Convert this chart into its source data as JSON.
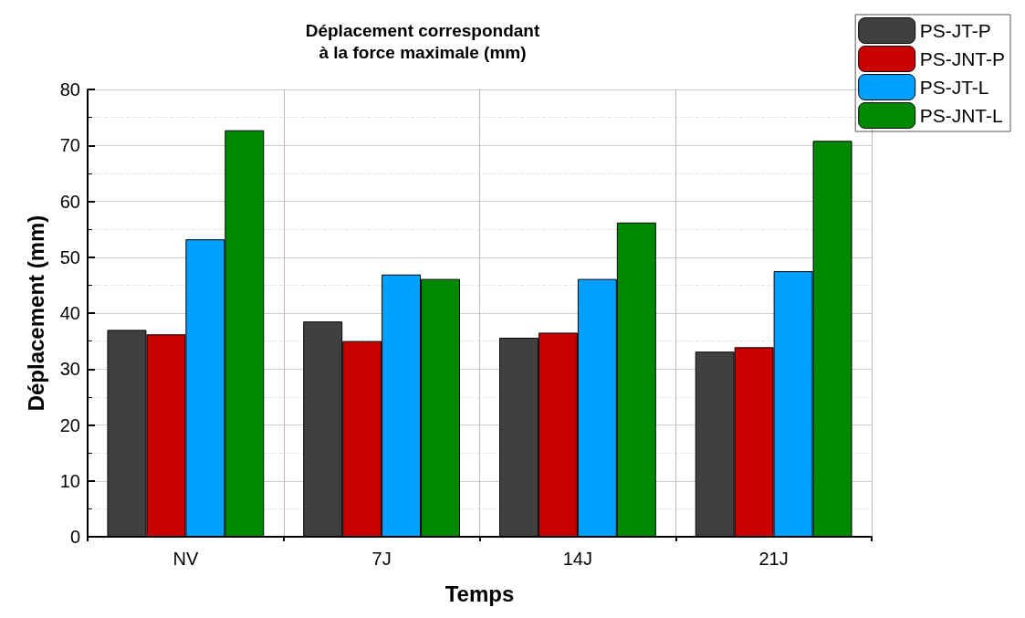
{
  "chart_data": {
    "type": "bar",
    "title": "Déplacement correspondant\nà la force maximale (mm)",
    "xlabel": "Temps",
    "ylabel": "Déplacement (mm)",
    "categories": [
      "NV",
      "7J",
      "14J",
      "21J"
    ],
    "series": [
      {
        "name": "PS-JT-P",
        "color": "#404040",
        "values": [
          37,
          38.5,
          35.6,
          33.1
        ]
      },
      {
        "name": "PS-JNT-P",
        "color": "#c80000",
        "values": [
          36.2,
          35,
          36.5,
          33.9
        ]
      },
      {
        "name": "PS-JT-L",
        "color": "#00a0ff",
        "values": [
          53.2,
          46.9,
          46.1,
          47.5
        ]
      },
      {
        "name": "PS-JNT-L",
        "color": "#008800",
        "values": [
          72.7,
          46.1,
          56.2,
          70.8
        ]
      }
    ],
    "ylim": [
      0,
      80
    ],
    "yticks": [
      0,
      10,
      20,
      30,
      40,
      50,
      60,
      70,
      80
    ],
    "grid": true,
    "legend": "top right"
  }
}
